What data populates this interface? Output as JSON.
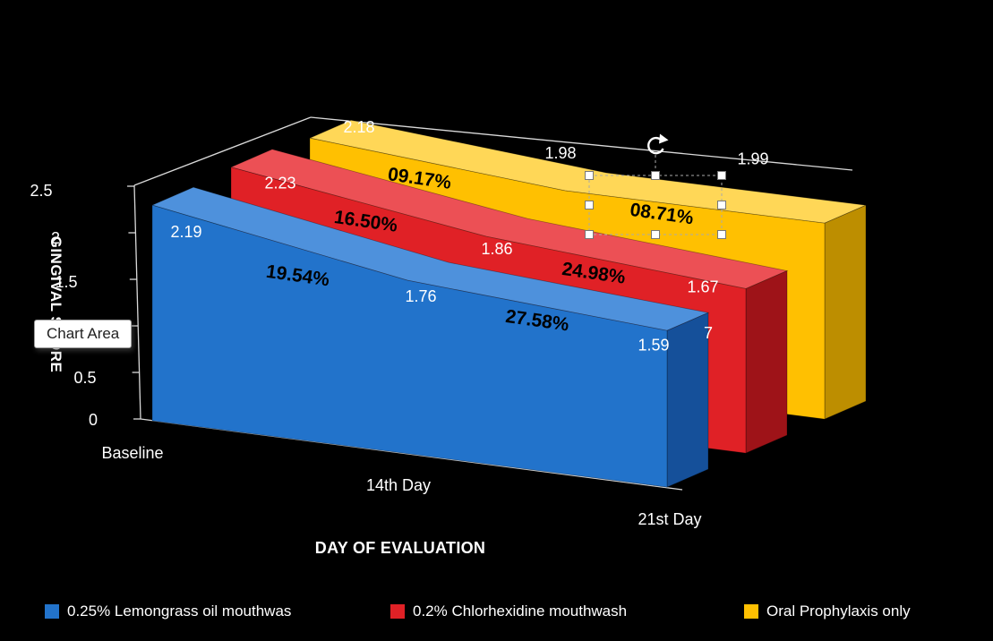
{
  "chart_data": {
    "type": "area",
    "subtype": "3d-area",
    "title": "",
    "xlabel": "DAY OF EVALUATION",
    "ylabel": "GINGIVAL SCORE",
    "categories": [
      "Baseline",
      "14th Day",
      "21st Day"
    ],
    "y_ticks": [
      "0",
      "0.5",
      "1",
      "1.5",
      "2",
      "2.5"
    ],
    "ylim": [
      0,
      2.5
    ],
    "grid": false,
    "legend_position": "bottom",
    "series": [
      {
        "name": "0.25% Lemongrass oil mouthwas",
        "values": [
          2.19,
          1.76,
          1.59
        ],
        "reduction_labels": [
          "19.54%",
          "27.58%"
        ],
        "color": "#2273CB",
        "color_dark": "#15509A",
        "color_light": "#4E91DC"
      },
      {
        "name": "0.2% Chlorhexidine mouthwash",
        "values": [
          2.23,
          1.86,
          1.67
        ],
        "reduction_labels": [
          "16.50%",
          "24.98%"
        ],
        "color": "#E02126",
        "color_dark": "#9E1318",
        "color_light": "#EC5055"
      },
      {
        "name": "Oral Prophylaxis only",
        "values": [
          2.18,
          1.98,
          1.99
        ],
        "reduction_labels": [
          "09.17%",
          "08.71%"
        ],
        "color": "#FFC001",
        "color_dark": "#BD8E00",
        "color_light": "#FFD757"
      }
    ],
    "stray_label": "7"
  },
  "tooltip": {
    "label": "Chart Area"
  },
  "colors": {
    "background": "#000000",
    "axis": "#D9D9D9",
    "text": "#FFFFFF"
  }
}
